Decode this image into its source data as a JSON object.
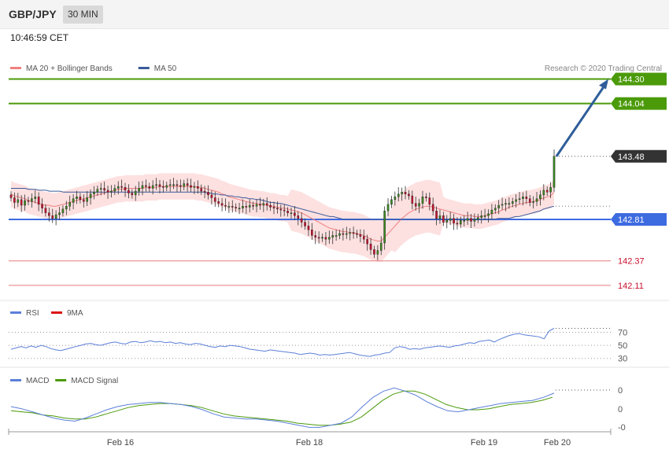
{
  "header": {
    "symbol": "GBP/JPY",
    "interval": "30 MIN"
  },
  "time": "10:46:59 CET",
  "credit": "Research © 2020 Trading Central",
  "colors": {
    "green_level": "#4b9a0a",
    "dark_level": "#333333",
    "blue_level": "#3d6be0",
    "red_level": "#e87a7a",
    "candle_up": "#3a8a1f",
    "candle_down": "#c8102e",
    "ma20": "#f08080",
    "ma50": "#3a5a9a",
    "bands": "#fde0e0",
    "arrow": "#2e5d99",
    "rsi": "#5b7fd8",
    "rsi_ma": "#d11",
    "macd": "#5b7fd8",
    "macd_signal": "#4b9a0a"
  },
  "chart_data": [
    {
      "type": "candlestick",
      "title": "GBP/JPY",
      "legend": [
        {
          "name": "MA 20 + Bollinger Bands",
          "color": "#f08080"
        },
        {
          "name": "MA 50",
          "color": "#3a5a9a"
        }
      ],
      "x_labels": [
        "Feb 16",
        "Feb 18",
        "Feb 19",
        "Feb 20"
      ],
      "ylim": [
        141.95,
        144.53
      ],
      "levels": [
        {
          "value": 144.3,
          "label": "144.30",
          "color": "#4b9a0a",
          "style": "resistance-flag"
        },
        {
          "value": 144.04,
          "label": "144.04",
          "color": "#4b9a0a",
          "style": "resistance-flag"
        },
        {
          "value": 143.48,
          "label": "143.48",
          "color": "#333333",
          "style": "current-price"
        },
        {
          "value": 142.81,
          "label": "142.81",
          "color": "#3d6be0",
          "style": "pivot-flag"
        },
        {
          "value": 142.37,
          "label": "142.37",
          "color": "#e87a7a",
          "style": "support"
        },
        {
          "value": 142.11,
          "label": "142.11",
          "color": "#e87a7a",
          "style": "support"
        }
      ],
      "close": [
        143.04,
        142.99,
        143.02,
        142.96,
        143.01,
        143.0,
        143.03,
        143.05,
        142.97,
        142.93,
        142.88,
        142.85,
        142.82,
        142.86,
        142.88,
        142.92,
        142.95,
        142.99,
        143.03,
        143.05,
        143.02,
        143.0,
        143.04,
        143.08,
        143.1,
        143.13,
        143.14,
        143.12,
        143.1,
        143.11,
        143.14,
        143.16,
        143.15,
        143.12,
        143.09,
        143.07,
        143.11,
        143.14,
        143.17,
        143.16,
        143.14,
        143.17,
        143.18,
        143.16,
        143.15,
        143.17,
        143.18,
        143.18,
        143.17,
        143.16,
        143.19,
        143.17,
        143.15,
        143.16,
        143.14,
        143.11,
        143.1,
        143.07,
        143.04,
        143.0,
        142.98,
        142.96,
        142.95,
        142.95,
        142.94,
        142.93,
        142.93,
        142.95,
        142.94,
        142.96,
        142.95,
        142.97,
        142.96,
        142.98,
        142.96,
        142.94,
        142.93,
        142.92,
        142.91,
        142.9,
        142.88,
        142.88,
        142.85,
        142.82,
        142.78,
        142.74,
        142.7,
        142.64,
        142.62,
        142.61,
        142.62,
        142.6,
        142.62,
        142.64,
        142.64,
        142.66,
        142.65,
        142.66,
        142.67,
        142.66,
        142.65,
        142.63,
        142.6,
        142.55,
        142.49,
        142.44,
        142.48,
        142.56,
        142.9,
        142.97,
        143.02,
        143.05,
        143.08,
        143.1,
        143.08,
        143.06,
        142.98,
        142.95,
        142.98,
        143.05,
        143.04,
        142.97,
        142.9,
        142.82,
        142.85,
        142.78,
        142.8,
        142.82,
        142.77,
        142.76,
        142.8,
        142.8,
        142.82,
        142.79,
        142.81,
        142.83,
        142.85,
        142.85,
        142.87,
        142.91,
        142.93,
        142.96,
        142.97,
        142.98,
        142.98,
        143.0,
        143.02,
        143.03,
        143.05,
        143.03,
        142.99,
        143.0,
        143.03,
        143.07,
        143.12,
        143.1,
        143.15,
        143.48
      ],
      "series": [
        {
          "name": "MA 20 + Bollinger Bands",
          "values": [
            143.08,
            143.06,
            143.05,
            143.04,
            143.03,
            143.01,
            143.0,
            142.99,
            142.98,
            142.97,
            142.96,
            142.96,
            142.95,
            142.95,
            142.96,
            142.97,
            142.98,
            142.99,
            143.0,
            143.01,
            143.02,
            143.03,
            143.04,
            143.05,
            143.06,
            143.07,
            143.08,
            143.09,
            143.1,
            143.11,
            143.12,
            143.13,
            143.13,
            143.14,
            143.14,
            143.14,
            143.14,
            143.14,
            143.14,
            143.15,
            143.15,
            143.15,
            143.15,
            143.16,
            143.16,
            143.16,
            143.16,
            143.16,
            143.16,
            143.16,
            143.16,
            143.16,
            143.16,
            143.16,
            143.15,
            143.15,
            143.14,
            143.13,
            143.12,
            143.11,
            143.1,
            143.08,
            143.07,
            143.05,
            143.04,
            143.03,
            143.02,
            143.01,
            143.0,
            142.99,
            142.98,
            142.98,
            142.97,
            142.97,
            142.96,
            142.95,
            142.95,
            142.94,
            142.93,
            142.93,
            142.92,
            142.91,
            142.9,
            142.89,
            142.88,
            142.86,
            142.84,
            142.82,
            142.8,
            142.78,
            142.76,
            142.74,
            142.72,
            142.71,
            142.7,
            142.69,
            142.68,
            142.68,
            142.67,
            142.67,
            142.66,
            142.65,
            142.64,
            142.62,
            142.6,
            142.59,
            142.58,
            142.58,
            142.62,
            142.66,
            142.7,
            142.74,
            142.78,
            142.82,
            142.85,
            142.88,
            142.9,
            142.92,
            142.93,
            142.94,
            142.95,
            142.95,
            142.94,
            142.93,
            142.92,
            142.91,
            142.9,
            142.89,
            142.88,
            142.87,
            142.86,
            142.85,
            142.85,
            142.85,
            142.84,
            142.84,
            142.84,
            142.85,
            142.86,
            142.87,
            142.88,
            142.89,
            142.91,
            142.92,
            142.94,
            142.95,
            142.96,
            142.97,
            142.98,
            142.99,
            142.99,
            143.0,
            143.01,
            143.02,
            143.04,
            143.05,
            143.06,
            143.1
          ]
        },
        {
          "name": "MA 50",
          "values": [
            143.14,
            143.14,
            143.14,
            143.14,
            143.14,
            143.13,
            143.13,
            143.13,
            143.12,
            143.12,
            143.12,
            143.11,
            143.11,
            143.11,
            143.11,
            143.1,
            143.1,
            143.1,
            143.1,
            143.1,
            143.1,
            143.1,
            143.1,
            143.1,
            143.1,
            143.1,
            143.1,
            143.1,
            143.1,
            143.1,
            143.1,
            143.1,
            143.1,
            143.1,
            143.1,
            143.1,
            143.1,
            143.1,
            143.1,
            143.1,
            143.1,
            143.1,
            143.1,
            143.1,
            143.1,
            143.1,
            143.1,
            143.1,
            143.1,
            143.1,
            143.1,
            143.1,
            143.1,
            143.1,
            143.1,
            143.1,
            143.09,
            143.09,
            143.08,
            143.08,
            143.07,
            143.07,
            143.06,
            143.06,
            143.05,
            143.05,
            143.04,
            143.04,
            143.03,
            143.03,
            143.02,
            143.02,
            143.01,
            143.0,
            142.99,
            142.99,
            142.98,
            142.98,
            142.97,
            142.96,
            142.95,
            142.94,
            142.93,
            142.92,
            142.91,
            142.9,
            142.89,
            142.88,
            142.87,
            142.86,
            142.85,
            142.84,
            142.84,
            142.83,
            142.82,
            142.81,
            142.81,
            142.81,
            142.81,
            142.81,
            142.81,
            142.81,
            142.81,
            142.81,
            142.81,
            142.81,
            142.81,
            142.81,
            142.81,
            142.81,
            142.81,
            142.81,
            142.81,
            142.81,
            142.81,
            142.81,
            142.81,
            142.81,
            142.81,
            142.81,
            142.81,
            142.81,
            142.81,
            142.81,
            142.81,
            142.81,
            142.81,
            142.81,
            142.81,
            142.81,
            142.81,
            142.81,
            142.81,
            142.81,
            142.81,
            142.81,
            142.81,
            142.81,
            142.81,
            142.82,
            142.82,
            142.82,
            142.82,
            142.83,
            142.84,
            142.84,
            142.85,
            142.86,
            142.87,
            142.88,
            142.89,
            142.9,
            142.92,
            142.93,
            142.94,
            142.95
          ]
        }
      ],
      "projection": {
        "from": 143.48,
        "to": 144.3
      }
    },
    {
      "type": "line",
      "legend": [
        {
          "name": "RSI",
          "color": "#5b7fd8"
        },
        {
          "name": "9MA",
          "color": "#d11"
        }
      ],
      "y_ticks": [
        "70",
        "50",
        "30"
      ],
      "ylim": [
        20,
        85
      ],
      "series": [
        {
          "name": "RSI",
          "values": [
            44,
            46,
            48,
            46,
            49,
            47,
            50,
            48,
            45,
            43,
            42,
            44,
            46,
            48,
            50,
            52,
            53,
            51,
            50,
            52,
            54,
            55,
            53,
            52,
            55,
            56,
            54,
            55,
            57,
            55,
            56,
            54,
            55,
            53,
            54,
            52,
            51,
            53,
            52,
            50,
            48,
            47,
            49,
            48,
            50,
            49,
            48,
            46,
            44,
            43,
            42,
            41,
            43,
            42,
            41,
            40,
            39,
            38,
            36,
            37,
            38,
            37,
            35,
            36,
            35,
            36,
            37,
            38,
            39,
            37,
            35,
            34,
            33,
            35,
            36,
            38,
            39,
            46,
            48,
            47,
            44,
            45,
            44,
            46,
            47,
            48,
            49,
            48,
            47,
            49,
            50,
            52,
            54,
            53,
            56,
            57,
            58,
            55,
            59,
            62,
            65,
            67,
            68,
            66,
            65,
            64,
            63,
            60,
            72,
            76
          ]
        }
      ]
    },
    {
      "type": "line",
      "legend": [
        {
          "name": "MACD",
          "color": "#5b7fd8"
        },
        {
          "name": "MACD Signal",
          "color": "#4b9a0a"
        }
      ],
      "y_ticks": [
        "0",
        "0",
        "-0"
      ],
      "series": [
        {
          "name": "MACD",
          "values": [
            0.05,
            0.03,
            0.0,
            -0.03,
            -0.06,
            -0.08,
            -0.09,
            -0.06,
            -0.02,
            0.02,
            0.05,
            0.07,
            0.08,
            0.09,
            0.09,
            0.08,
            0.07,
            0.05,
            0.02,
            -0.02,
            -0.05,
            -0.06,
            -0.07,
            -0.07,
            -0.08,
            -0.09,
            -0.11,
            -0.13,
            -0.15,
            -0.15,
            -0.13,
            -0.11,
            -0.05,
            0.05,
            0.14,
            0.2,
            0.23,
            0.2,
            0.16,
            0.1,
            0.05,
            0.01,
            0.0,
            0.02,
            0.04,
            0.06,
            0.08,
            0.09,
            0.1,
            0.11,
            0.14,
            0.18
          ]
        },
        {
          "name": "MACD Signal",
          "values": [
            0.01,
            0.0,
            -0.01,
            -0.03,
            -0.04,
            -0.06,
            -0.07,
            -0.07,
            -0.05,
            -0.02,
            0.01,
            0.04,
            0.06,
            0.07,
            0.08,
            0.08,
            0.07,
            0.06,
            0.04,
            0.01,
            -0.02,
            -0.04,
            -0.05,
            -0.06,
            -0.07,
            -0.08,
            -0.09,
            -0.11,
            -0.12,
            -0.13,
            -0.13,
            -0.12,
            -0.1,
            -0.05,
            0.03,
            0.11,
            0.17,
            0.2,
            0.2,
            0.17,
            0.12,
            0.07,
            0.04,
            0.02,
            0.02,
            0.03,
            0.05,
            0.07,
            0.08,
            0.09,
            0.11,
            0.14
          ]
        }
      ]
    }
  ]
}
